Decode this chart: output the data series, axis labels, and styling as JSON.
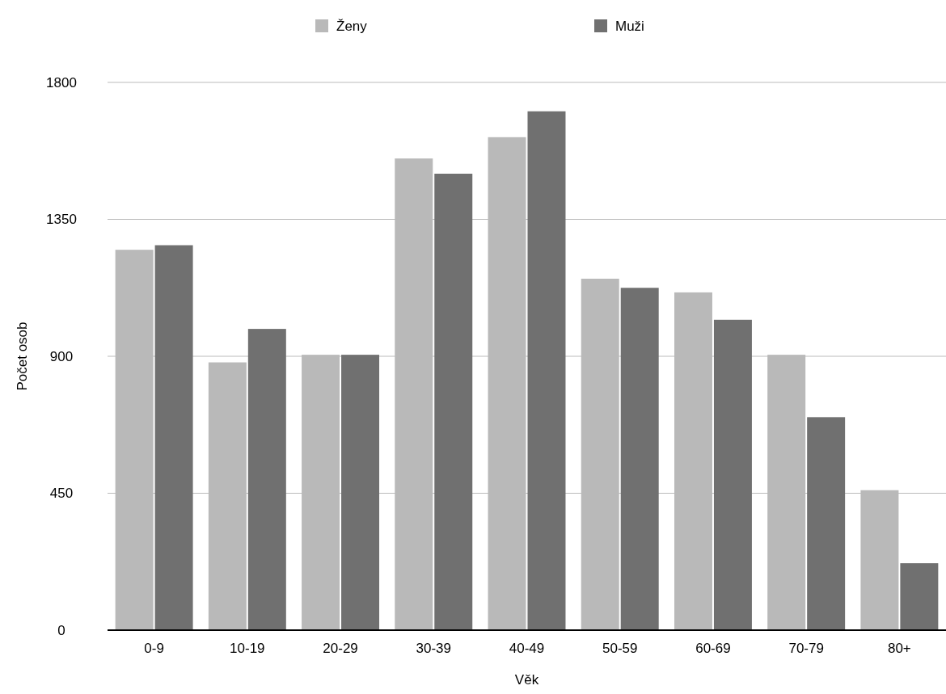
{
  "chart_data": {
    "type": "bar",
    "xlabel": "Věk",
    "ylabel": "Počet osob",
    "categories": [
      "0-9",
      "10-19",
      "20-29",
      "30-39",
      "40-49",
      "50-59",
      "60-69",
      "70-79",
      "80+"
    ],
    "series": [
      {
        "name": "Ženy",
        "color": "#b9b9b9",
        "values": [
          1250,
          880,
          905,
          1550,
          1620,
          1155,
          1110,
          905,
          460
        ]
      },
      {
        "name": "Muži",
        "color": "#707070",
        "values": [
          1265,
          990,
          905,
          1500,
          1705,
          1125,
          1020,
          700,
          220
        ]
      }
    ],
    "ylim": [
      0,
      1800
    ],
    "yticks": [
      0,
      450,
      900,
      1350,
      1800
    ],
    "grid": "y",
    "legend": "top"
  }
}
